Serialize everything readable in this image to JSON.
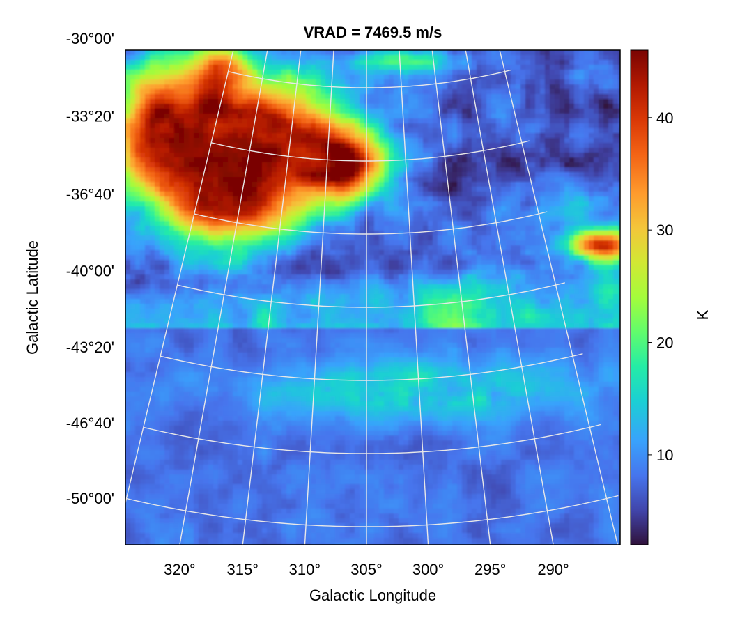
{
  "chart_data": {
    "type": "heatmap",
    "title": "VRAD = 7469.5 m/s",
    "xlabel": "Galactic Longitude",
    "ylabel": "Galactic Latitude",
    "x_ticks": [
      "320°",
      "315°",
      "310°",
      "305°",
      "300°",
      "295°",
      "290°"
    ],
    "x_tick_values": [
      320,
      315,
      310,
      305,
      300,
      295,
      290
    ],
    "y_ticks": [
      "-30°00'",
      "-33°20'",
      "-36°40'",
      "-40°00'",
      "-43°20'",
      "-46°40'",
      "-50°00'"
    ],
    "y_tick_values": [
      -30.0,
      -33.333,
      -36.667,
      -40.0,
      -43.333,
      -46.667,
      -50.0
    ],
    "xlim": [
      321,
      286.5
    ],
    "ylim": [
      -50.3,
      -28.3
    ],
    "grid": true,
    "grid_color": "#e8e8e8",
    "colorbar": {
      "label": "K",
      "ticks": [
        "10",
        "20",
        "30",
        "40"
      ],
      "tick_values": [
        10,
        20,
        30,
        40
      ],
      "range": [
        2,
        46
      ],
      "colormap": "turbo"
    },
    "field_regions": [
      {
        "lon": 314,
        "lat": -31.5,
        "value": 42
      },
      {
        "lon": 316,
        "lat": -34.5,
        "value": 40
      },
      {
        "lon": 309,
        "lat": -32.5,
        "value": 38
      },
      {
        "lon": 312,
        "lat": -36.0,
        "value": 36
      },
      {
        "lon": 303,
        "lat": -33.5,
        "value": 34
      },
      {
        "lon": 301,
        "lat": -29.0,
        "value": 30
      },
      {
        "lon": 288,
        "lat": -36.8,
        "value": 40
      },
      {
        "lon": 296,
        "lat": -33.0,
        "value": 14
      },
      {
        "lon": 292,
        "lat": -31.0,
        "value": 12
      },
      {
        "lon": 300,
        "lat": -37.5,
        "value": 18
      },
      {
        "lon": 305,
        "lat": -42.0,
        "value": 6
      },
      {
        "lon": 305,
        "lat": -49.0,
        "value": 3
      }
    ]
  }
}
